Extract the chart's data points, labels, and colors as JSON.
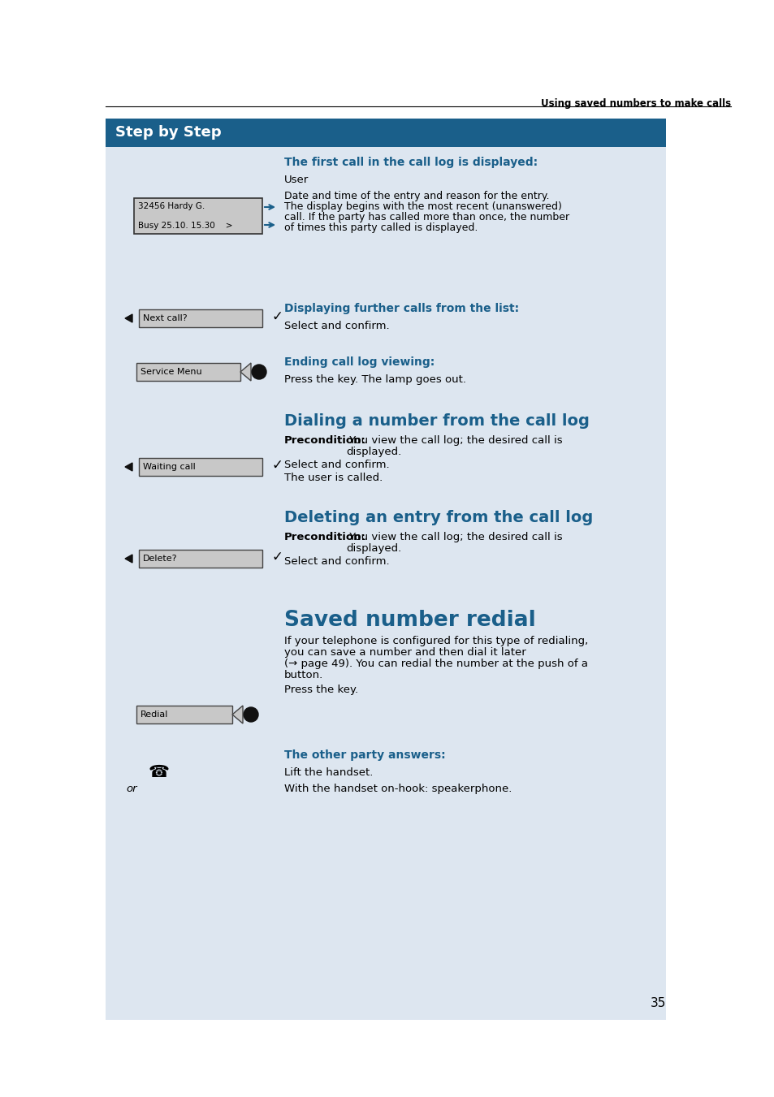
{
  "page_bg": "#ffffff",
  "panel_bg": "#dde6f0",
  "header_bg": "#1a5f8a",
  "header_text": "Step by Step",
  "header_text_color": "#ffffff",
  "top_label": "Using saved numbers to make calls",
  "page_number": "35",
  "blue_color": "#1a5f8a",
  "dark_text": "#000000",
  "display_line1": "32456 Hardy G.",
  "display_line2": "Busy 25.10. 15.30    >",
  "btn_next": "Next call?",
  "btn_service": "Service Menu",
  "btn_waiting": "Waiting call",
  "btn_delete": "Delete?",
  "btn_redial": "Redial",
  "sec1_heading": "The first call in the call log is displayed:",
  "sec1_user": "User",
  "sec1_desc": "Date and time of the entry and reason for the entry.\nThe display begins with the most recent (unanswered)\ncall. If the party has called more than once, the number\nof times this party called is displayed.",
  "sec2_heading": "Displaying further calls from the list:",
  "sec2_desc": "Select and confirm.",
  "sec3_heading": "Ending call log viewing:",
  "sec3_desc": "Press the key. The lamp goes out.",
  "sec4_heading": "Dialing a number from the call log",
  "sec4_prec": "You view the call log; the desired call is displayed.",
  "sec4_desc": "Select and confirm.",
  "sec4_extra": "The user is called.",
  "sec5_heading": "Deleting an entry from the call log",
  "sec5_prec": "You view the call log; the desired call is displayed.",
  "sec5_desc": "Select and confirm.",
  "sec6_heading": "Saved number redial",
  "sec6_intro1": "If your telephone is configured for this type of redialing,",
  "sec6_intro2": "you can save a number and then dial it later",
  "sec6_intro3": "(→ page 49). You can redial the number at the push of a",
  "sec6_intro4": "button.",
  "sec6_desc": "Press the key.",
  "sec6_sub": "The other party answers:",
  "sec6_phone": "Lift the handset.",
  "sec6_or": "or",
  "sec6_or_desc": "With the handset on-hook: speakerphone.",
  "prec_label": "Precondition:"
}
